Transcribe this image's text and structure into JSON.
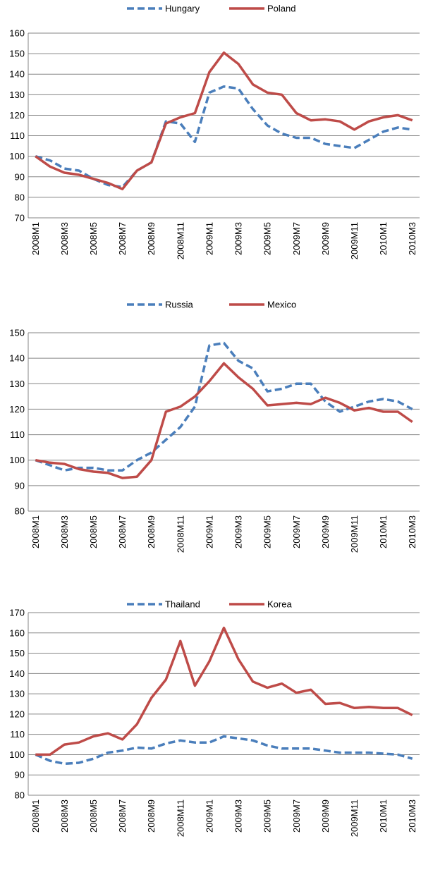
{
  "chart_data": [
    {
      "type": "line",
      "categories": [
        "2008M1",
        null,
        "2008M3",
        null,
        "2008M5",
        null,
        "2008M7",
        null,
        "2008M9",
        null,
        "2008M11",
        null,
        "2009M1",
        null,
        "2009M3",
        null,
        "2009M5",
        null,
        "2009M7",
        null,
        "2009M9",
        null,
        "2009M11",
        null,
        "2010M1",
        null,
        "2010M3"
      ],
      "series": [
        {
          "name": "Hungary",
          "color": "#4a7ebb",
          "dashed": true,
          "values": [
            100,
            98,
            94,
            93,
            89,
            86,
            85,
            93,
            97,
            117,
            116,
            107,
            131,
            134,
            133,
            123,
            115,
            111,
            109,
            109,
            106,
            105,
            104,
            108,
            112,
            114,
            113
          ]
        },
        {
          "name": "Poland",
          "color": "#be4b48",
          "dashed": false,
          "values": [
            100,
            95,
            92,
            91,
            89,
            87,
            84,
            93,
            97,
            116,
            119,
            121,
            141,
            150.5,
            145,
            135,
            131,
            130,
            121,
            117.5,
            118,
            117,
            113,
            117,
            119,
            120,
            117.5
          ]
        }
      ],
      "ylim": [
        70,
        160
      ],
      "yticks": [
        70,
        80,
        90,
        100,
        110,
        120,
        130,
        140,
        150,
        160
      ],
      "grid": true,
      "legend": "top"
    },
    {
      "type": "line",
      "categories": [
        "2008M1",
        null,
        "2008M3",
        null,
        "2008M5",
        null,
        "2008M7",
        null,
        "2008M9",
        null,
        "2008M11",
        null,
        "2009M1",
        null,
        "2009M3",
        null,
        "2009M5",
        null,
        "2009M7",
        null,
        "2009M9",
        null,
        "2009M11",
        null,
        "2010M1",
        null,
        "2010M3"
      ],
      "series": [
        {
          "name": "Russia",
          "color": "#4a7ebb",
          "dashed": true,
          "values": [
            100,
            98,
            96,
            97,
            97,
            96,
            96,
            100,
            103,
            108,
            113,
            121,
            145,
            146,
            139,
            136,
            127,
            128,
            130,
            130,
            123,
            119,
            121,
            123,
            124,
            123,
            120
          ]
        },
        {
          "name": "Mexico",
          "color": "#be4b48",
          "dashed": false,
          "values": [
            100,
            99,
            98.5,
            96.5,
            95.5,
            95,
            93,
            93.5,
            100,
            119,
            121,
            125,
            131,
            138,
            132.5,
            128,
            121.5,
            122,
            122.5,
            122,
            124.5,
            122.5,
            119.5,
            120.5,
            119,
            119,
            115
          ]
        }
      ],
      "ylim": [
        80,
        150
      ],
      "yticks": [
        80,
        90,
        100,
        110,
        120,
        130,
        140,
        150
      ],
      "grid": true,
      "legend": "top"
    },
    {
      "type": "line",
      "categories": [
        "2008M1",
        null,
        "2008M3",
        null,
        "2008M5",
        null,
        "2008M7",
        null,
        "2008M9",
        null,
        "2008M11",
        null,
        "2009M1",
        null,
        "2009M3",
        null,
        "2009M5",
        null,
        "2009M7",
        null,
        "2009M9",
        null,
        "2009M11",
        null,
        "2010M1",
        null,
        "2010M3"
      ],
      "series": [
        {
          "name": "Thailand",
          "color": "#4a7ebb",
          "dashed": true,
          "values": [
            100,
            97,
            95.5,
            96,
            98,
            101,
            102,
            103.5,
            103,
            105.5,
            107,
            106,
            106,
            109,
            108,
            107,
            104.5,
            103,
            103,
            103,
            102,
            101,
            101,
            101,
            100.5,
            100,
            98
          ]
        },
        {
          "name": "Korea",
          "color": "#be4b48",
          "dashed": false,
          "values": [
            100,
            100,
            105,
            106,
            109,
            110.5,
            107.5,
            115,
            128,
            137,
            156,
            134,
            146,
            162.5,
            147,
            136,
            133,
            135,
            130.5,
            132,
            125,
            125.5,
            123,
            123.5,
            123,
            123,
            119.5
          ]
        }
      ],
      "ylim": [
        80,
        170
      ],
      "yticks": [
        80,
        90,
        100,
        110,
        120,
        130,
        140,
        150,
        160,
        170
      ],
      "grid": true,
      "legend": "top"
    }
  ]
}
